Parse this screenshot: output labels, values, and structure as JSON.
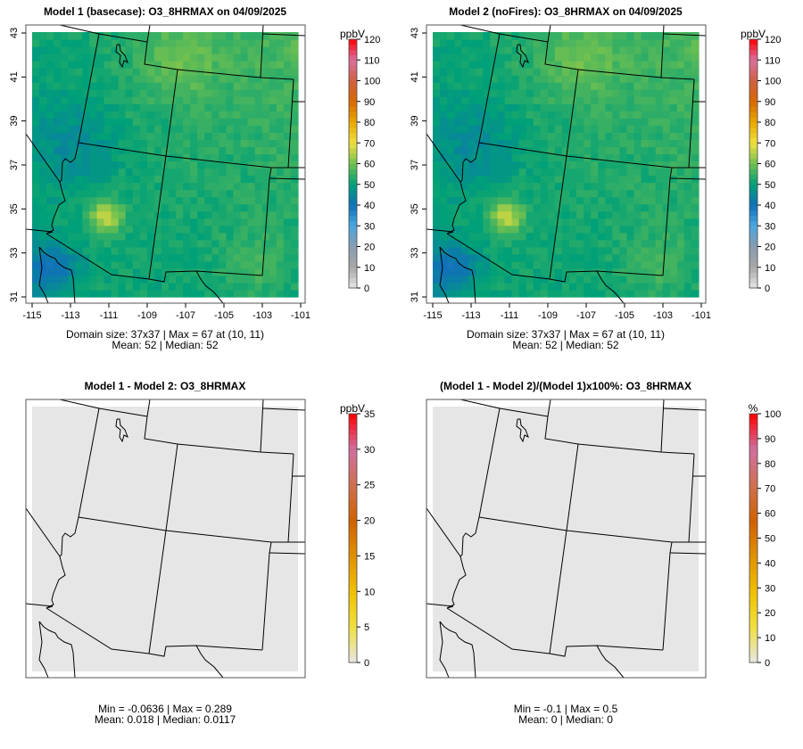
{
  "chart_data": [
    {
      "type": "heatmap",
      "title": "Model 1 (basecase): O3_8HRMAX on 04/09/2025",
      "unit": "ppbV",
      "crange": [
        0,
        120
      ],
      "cticks": [
        0,
        10,
        20,
        30,
        40,
        50,
        60,
        70,
        80,
        90,
        100,
        110,
        120
      ],
      "xticks": [
        -115,
        -113,
        -111,
        -109,
        -107,
        -105,
        -103,
        -101
      ],
      "yticks": [
        31,
        33,
        35,
        37,
        39,
        41,
        43
      ],
      "xlim": [
        -115,
        -101
      ],
      "ylim": [
        31,
        43
      ],
      "stats1": "Domain size: 37x37 | Max = 67 at (10, 11)",
      "stats2": "Mean: 52 |  Median: 52",
      "domain": [
        37,
        37
      ],
      "max": 67,
      "mean": 52,
      "median": 52,
      "kind": "o3"
    },
    {
      "type": "heatmap",
      "title": "Model 2 (noFires): O3_8HRMAX on 04/09/2025",
      "unit": "ppbV",
      "crange": [
        0,
        120
      ],
      "cticks": [
        0,
        10,
        20,
        30,
        40,
        50,
        60,
        70,
        80,
        90,
        100,
        110,
        120
      ],
      "xticks": [
        -115,
        -113,
        -111,
        -109,
        -107,
        -105,
        -103,
        -101
      ],
      "yticks": [
        31,
        33,
        35,
        37,
        39,
        41,
        43
      ],
      "xlim": [
        -115,
        -101
      ],
      "ylim": [
        31,
        43
      ],
      "stats1": "Domain size: 37x37 | Max = 67 at (10, 11)",
      "stats2": "Mean: 52 |  Median: 52",
      "domain": [
        37,
        37
      ],
      "max": 67,
      "mean": 52,
      "median": 52,
      "kind": "o3"
    },
    {
      "type": "heatmap",
      "title": "Model 1 - Model 2: O3_8HRMAX",
      "unit": "ppbV",
      "crange": [
        0,
        35
      ],
      "cticks": [
        0,
        5,
        10,
        15,
        20,
        25,
        30,
        35
      ],
      "stats1": "Min = -0.0636 | Max = 0.289",
      "stats2": "Mean: 0.018 |  Median: 0.0117",
      "min": -0.0636,
      "max": 0.289,
      "mean": 0.018,
      "median": 0.0117,
      "kind": "diff"
    },
    {
      "type": "heatmap",
      "title": "(Model 1 - Model 2)/(Model 1)x100%: O3_8HRMAX",
      "unit": "%",
      "crange": [
        0,
        100
      ],
      "cticks": [
        0,
        10,
        20,
        30,
        40,
        50,
        60,
        70,
        80,
        90,
        100
      ],
      "stats1": "Min = -0.1 | Max = 0.5",
      "stats2": "Mean: 0 |  Median: 0",
      "min": -0.1,
      "max": 0.5,
      "mean": 0,
      "median": 0,
      "kind": "pct"
    }
  ],
  "colors": {
    "o3": [
      "#e6e6e6",
      "#a8a8a8",
      "#8a9bb0",
      "#4aa8e0",
      "#1070b8",
      "#00a078",
      "#70c050",
      "#f0e040",
      "#e8a800",
      "#d86800",
      "#d06040",
      "#d870a0",
      "#ff0000"
    ],
    "diff": [
      "#e6e6e6",
      "#f0e040",
      "#f0c000",
      "#e09000",
      "#d06000",
      "#d07050",
      "#d070a0",
      "#ff0000"
    ],
    "background": "#e6e6e6"
  }
}
